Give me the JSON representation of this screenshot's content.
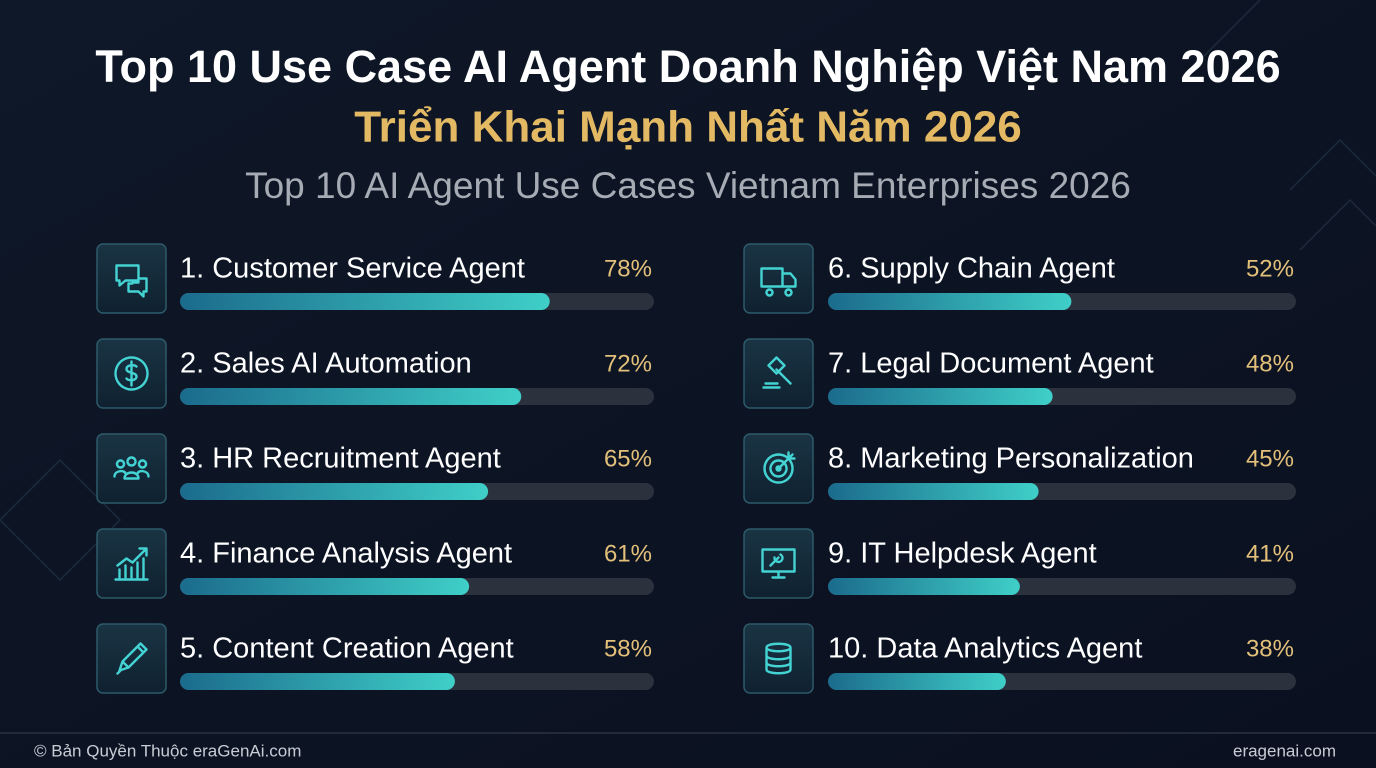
{
  "chart_data": {
    "type": "bar",
    "title": "Top 10 Use Case AI Agent Doanh Nghiệp Việt Nam 2026",
    "subtitle": "Triển Khai Mạnh Nhất Năm 2026",
    "subtitle_2": "Top 10 AI Agent Use Cases Vietnam Enterprises 2026",
    "categories": [
      "1. Customer Service Agent",
      "2. Sales AI Automation",
      "3. HR Recruitment Agent",
      "4. Finance Analysis Agent",
      "5. Content Creation Agent",
      "6. Supply Chain Agent",
      "7. Legal Document Agent",
      "8. Marketing Personalization",
      "9. IT Helpdesk Agent",
      "10. Data Analytics Agent"
    ],
    "values": [
      78,
      72,
      65,
      61,
      58,
      52,
      48,
      45,
      41,
      38
    ],
    "value_labels": [
      "78%",
      "72%",
      "65%",
      "61%",
      "58%",
      "52%",
      "48%",
      "45%",
      "41%",
      "38%"
    ],
    "xlim": [
      0,
      100
    ],
    "color": "#3cc6c6"
  },
  "footer": {
    "left": "© Bản Quyền Thuộc eraGenAi.com",
    "right": "eragenai.com"
  }
}
